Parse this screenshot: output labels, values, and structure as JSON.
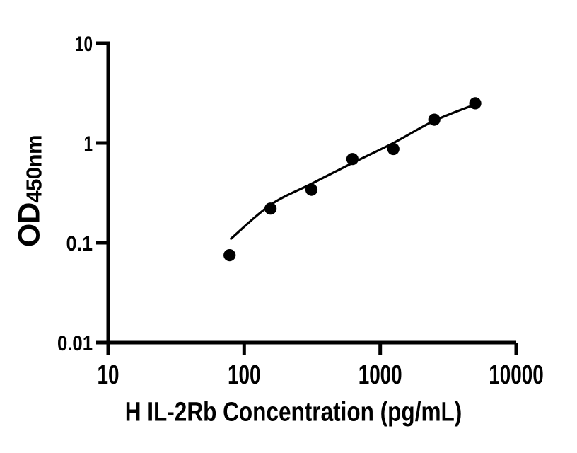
{
  "figure": {
    "background": "#ffffff",
    "foreground": "#000000"
  },
  "chart_data": {
    "type": "scatter",
    "title": "",
    "xlabel": "H IL-2Rb Concentration (pg/mL)",
    "ylabel": "OD450nm",
    "ylabel_main": "OD",
    "ylabel_sub": "450nm",
    "x_scale": "log",
    "y_scale": "log",
    "xlim": [
      10,
      10000
    ],
    "ylim": [
      0.01,
      10
    ],
    "x_ticks": [
      "10",
      "100",
      "1000",
      "10000"
    ],
    "y_ticks": [
      "10",
      "1",
      "0.1",
      "0.01"
    ],
    "grid": false,
    "legend": "none",
    "marker_color": "#000000",
    "line_color": "#000000",
    "series": [
      {
        "name": "standard-points",
        "type": "scatter",
        "x": [
          78.125,
          156.25,
          312.5,
          625,
          1250,
          2500,
          5000
        ],
        "y": [
          0.075,
          0.22,
          0.34,
          0.69,
          0.87,
          1.71,
          2.5
        ]
      },
      {
        "name": "fit-curve",
        "type": "line",
        "x": [
          80,
          156.25,
          312.5,
          625,
          1250,
          2500,
          5000
        ],
        "y": [
          0.11,
          0.24,
          0.39,
          0.63,
          1.0,
          1.67,
          2.43
        ]
      }
    ]
  }
}
